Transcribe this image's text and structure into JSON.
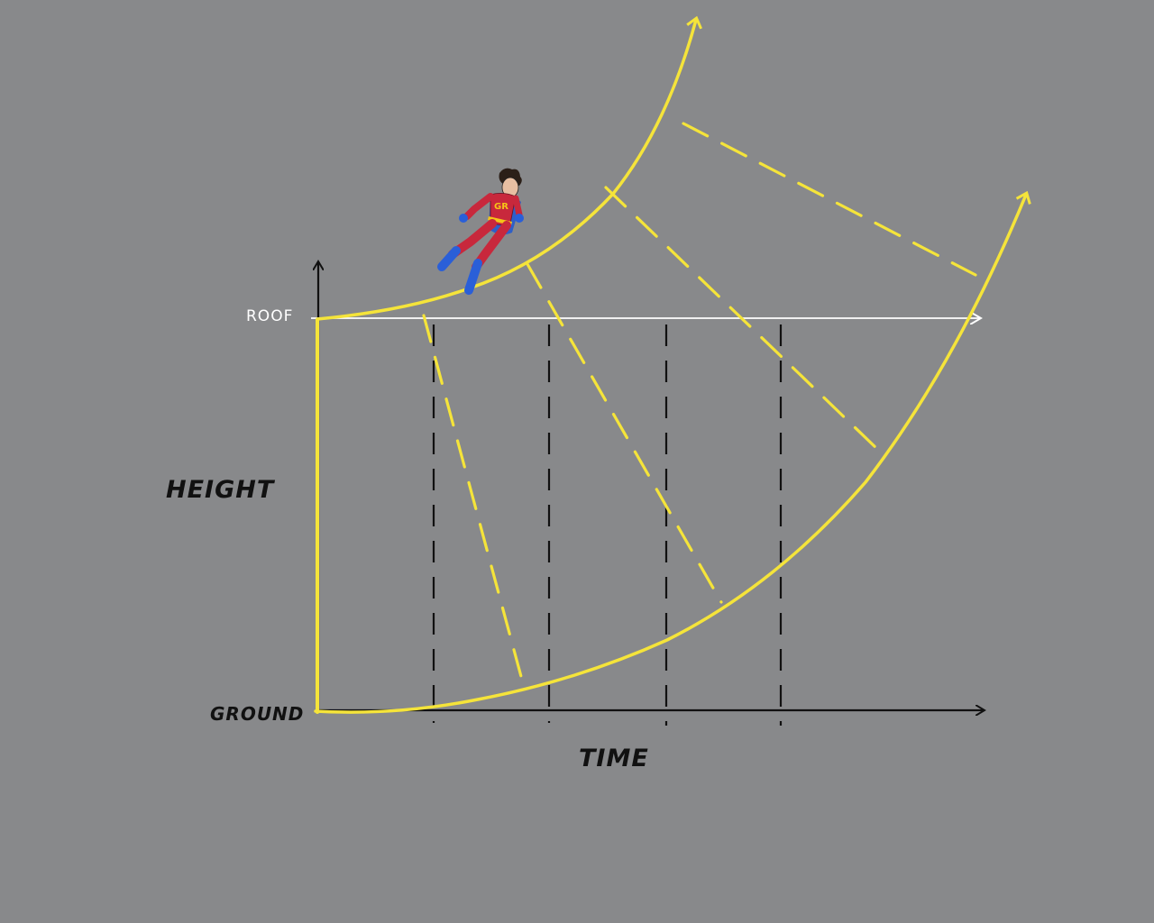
{
  "labels": {
    "height": "HEIGHT",
    "time": "TIME",
    "ground": "GROUND",
    "roof": "ROOF"
  },
  "colors": {
    "background": "#88898b",
    "curve": "#f5e43a",
    "axis": "#111111",
    "roof_line": "#ffffff",
    "hero_suit": "#c8283c",
    "hero_boots": "#2a5fd8"
  },
  "figure": {
    "icon": "superhero-figure-icon",
    "chest_letters": "GR"
  }
}
